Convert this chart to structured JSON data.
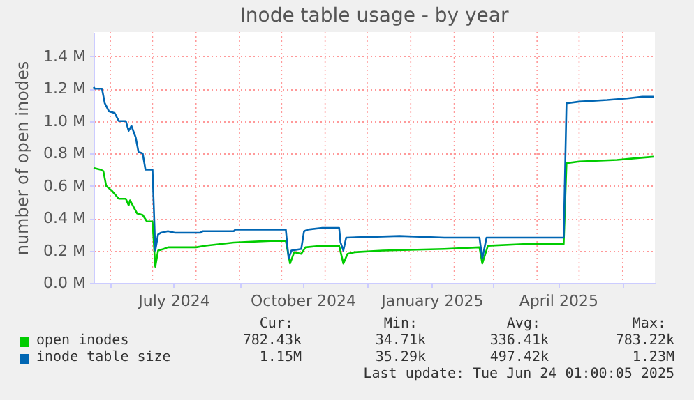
{
  "chart_data": {
    "type": "line",
    "title": "Inode table usage - by year",
    "ylabel": "number of open inodes",
    "xlim": [
      "2024-05-20",
      "2025-06-24"
    ],
    "xticks": [
      {
        "value": "2024-06-01",
        "label": null
      },
      {
        "value": "2024-07-01",
        "label": null
      },
      {
        "value": "2024-07-16",
        "label": "July 2024"
      },
      {
        "value": "2024-08-01",
        "label": null
      },
      {
        "value": "2024-09-01",
        "label": null
      },
      {
        "value": "2024-10-01",
        "label": null
      },
      {
        "value": "2024-10-16",
        "label": "October 2024"
      },
      {
        "value": "2024-11-01",
        "label": null
      },
      {
        "value": "2024-12-01",
        "label": null
      },
      {
        "value": "2025-01-01",
        "label": null
      },
      {
        "value": "2025-01-16",
        "label": "January 2025"
      },
      {
        "value": "2025-02-01",
        "label": null
      },
      {
        "value": "2025-03-01",
        "label": null
      },
      {
        "value": "2025-04-01",
        "label": null
      },
      {
        "value": "2025-04-16",
        "label": "April 2025"
      },
      {
        "value": "2025-05-01",
        "label": null
      },
      {
        "value": "2025-06-01",
        "label": null
      }
    ],
    "ylim": [
      0,
      1.55
    ],
    "yticks": [
      {
        "value": 0,
        "label": "0.0 M"
      },
      {
        "value": 0.2,
        "label": "0.2 M"
      },
      {
        "value": 0.4,
        "label": "0.4 M"
      },
      {
        "value": 0.6,
        "label": "0.6 M"
      },
      {
        "value": 0.8,
        "label": "0.8 M"
      },
      {
        "value": 1.0,
        "label": "1.0 M"
      },
      {
        "value": 1.2,
        "label": "1.2 M"
      },
      {
        "value": 1.4,
        "label": "1.4 M"
      }
    ],
    "grid": true,
    "legend": "bottom",
    "line_style": "solid",
    "marker": "none",
    "series": [
      {
        "name": "open inodes",
        "color": "#00cc00",
        "x": [
          "2024-05-20",
          "2024-05-25",
          "2024-05-27",
          "2024-05-29",
          "2024-06-02",
          "2024-06-07",
          "2024-06-12",
          "2024-06-14",
          "2024-06-15",
          "2024-06-20",
          "2024-06-24",
          "2024-06-27",
          "2024-07-01",
          "2024-07-03",
          "2024-07-05",
          "2024-07-09",
          "2024-07-12",
          "2024-08-01",
          "2024-08-08",
          "2024-08-18",
          "2024-08-28",
          "2024-09-23",
          "2024-10-04",
          "2024-10-07",
          "2024-10-10",
          "2024-10-15",
          "2024-10-18",
          "2024-10-30",
          "2024-11-11",
          "2024-11-14",
          "2024-11-17",
          "2024-11-22",
          "2024-12-12",
          "2025-01-25",
          "2025-02-19",
          "2025-02-21",
          "2025-02-25",
          "2025-03-22",
          "2025-04-20",
          "2025-04-22",
          "2025-05-01",
          "2025-05-28",
          "2025-06-10",
          "2025-06-23"
        ],
        "values": [
          0.71,
          0.7,
          0.69,
          0.6,
          0.57,
          0.52,
          0.52,
          0.48,
          0.51,
          0.43,
          0.42,
          0.38,
          0.38,
          0.1,
          0.2,
          0.21,
          0.22,
          0.22,
          0.23,
          0.24,
          0.25,
          0.26,
          0.26,
          0.12,
          0.19,
          0.18,
          0.22,
          0.23,
          0.23,
          0.12,
          0.18,
          0.19,
          0.2,
          0.21,
          0.22,
          0.12,
          0.23,
          0.24,
          0.24,
          0.74,
          0.75,
          0.76,
          0.77,
          0.78
        ]
      },
      {
        "name": "inode table size",
        "color": "#0066b3",
        "x": [
          "2024-05-20",
          "2024-05-21",
          "2024-05-26",
          "2024-05-28",
          "2024-05-31",
          "2024-06-04",
          "2024-06-07",
          "2024-06-12",
          "2024-06-14",
          "2024-06-16",
          "2024-06-19",
          "2024-06-21",
          "2024-06-24",
          "2024-06-26",
          "2024-07-01",
          "2024-07-03",
          "2024-07-05",
          "2024-07-07",
          "2024-07-12",
          "2024-07-17",
          "2024-08-04",
          "2024-08-06",
          "2024-08-28",
          "2024-08-29",
          "2024-10-04",
          "2024-10-06",
          "2024-10-08",
          "2024-10-15",
          "2024-10-17",
          "2024-10-20",
          "2024-10-30",
          "2024-11-11",
          "2024-11-12",
          "2024-11-14",
          "2024-11-16",
          "2024-12-24",
          "2025-01-25",
          "2025-02-19",
          "2025-02-21",
          "2025-02-24",
          "2025-04-20",
          "2025-04-22",
          "2025-05-01",
          "2025-05-21",
          "2025-06-04",
          "2025-06-15",
          "2025-06-23"
        ],
        "values": [
          1.21,
          1.2,
          1.2,
          1.11,
          1.06,
          1.05,
          1.0,
          1.0,
          0.94,
          0.97,
          0.9,
          0.81,
          0.8,
          0.7,
          0.7,
          0.2,
          0.3,
          0.31,
          0.32,
          0.31,
          0.31,
          0.32,
          0.32,
          0.33,
          0.33,
          0.15,
          0.2,
          0.21,
          0.32,
          0.33,
          0.34,
          0.34,
          0.25,
          0.2,
          0.28,
          0.29,
          0.28,
          0.28,
          0.15,
          0.28,
          0.28,
          1.11,
          1.12,
          1.13,
          1.14,
          1.15,
          1.15
        ]
      }
    ],
    "annotations": [
      "Cur:",
      "Min:",
      "Avg:",
      "Max:",
      "782.43k",
      "34.71k",
      "336.41k",
      "783.22k",
      "1.15M",
      "35.29k",
      "497.42k",
      "1.23M",
      "Last update: Tue Jun 24 01:00:05 2025"
    ]
  }
}
